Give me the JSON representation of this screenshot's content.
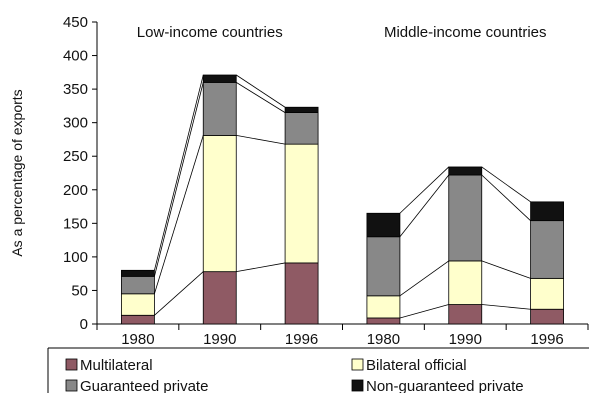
{
  "chart_data": {
    "type": "bar",
    "stacked": true,
    "ylabel": "As a percentage of exports",
    "xlabel": "",
    "ylim": [
      0,
      450
    ],
    "yticks": [
      0,
      50,
      100,
      150,
      200,
      250,
      300,
      350,
      400,
      450
    ],
    "groups": [
      {
        "title": "Low-income countries",
        "categories": [
          "1980",
          "1990",
          "1996"
        ]
      },
      {
        "title": "Middle-income countries",
        "categories": [
          "1980",
          "1990",
          "1996"
        ]
      }
    ],
    "categories": [
      "1980",
      "1990",
      "1996",
      "1980",
      "1990",
      "1996"
    ],
    "series": [
      {
        "name": "Multilateral",
        "color": "#8f5a64",
        "values": [
          13,
          78,
          91,
          9,
          29,
          22
        ]
      },
      {
        "name": "Bilateral official",
        "color": "#ffffcc",
        "values": [
          32,
          203,
          177,
          33,
          65,
          46
        ]
      },
      {
        "name": "Guaranteed private",
        "color": "#888888",
        "values": [
          26,
          79,
          47,
          88,
          128,
          86
        ]
      },
      {
        "name": "Non-guaranteed private",
        "color": "#111111",
        "values": [
          9,
          11,
          8,
          35,
          12,
          28
        ]
      }
    ],
    "connector_lines": true,
    "legend_position": "bottom",
    "grid": false
  }
}
